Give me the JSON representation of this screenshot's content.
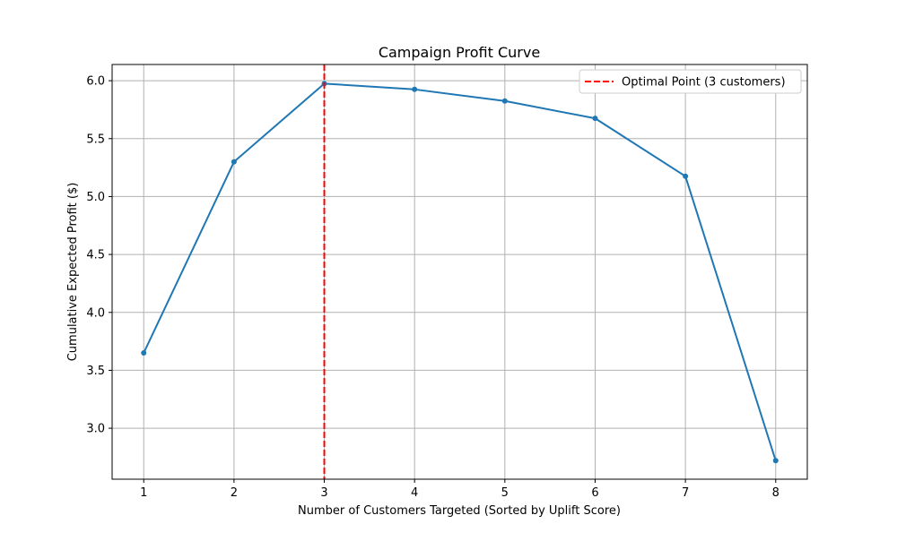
{
  "chart_data": {
    "type": "line",
    "title": "Campaign Profit Curve",
    "xlabel": "Number of Customers Targeted (Sorted by Uplift Score)",
    "ylabel": "Cumulative Expected Profit ($)",
    "x": [
      1,
      2,
      3,
      4,
      5,
      6,
      7,
      8
    ],
    "series": [
      {
        "values": [
          3.65,
          5.3,
          5.975,
          5.925,
          5.825,
          5.675,
          5.175,
          2.72
        ],
        "color": "#1f77b4"
      }
    ],
    "xlim": [
      0.65,
      8.35
    ],
    "ylim": [
      2.56,
      6.14
    ],
    "xticks": [
      "1",
      "2",
      "3",
      "4",
      "5",
      "6",
      "7",
      "8"
    ],
    "yticks": [
      "3.0",
      "3.5",
      "4.0",
      "4.5",
      "5.0",
      "5.5",
      "6.0"
    ],
    "grid": true,
    "annotations": [
      {
        "type": "vertical-line",
        "x": 3,
        "style": "dashed",
        "color": "#ff0000",
        "label": "Optimal Point (3 customers)"
      }
    ],
    "legend": {
      "placement": "top-right",
      "entries": [
        "Optimal Point (3 customers)"
      ]
    }
  }
}
